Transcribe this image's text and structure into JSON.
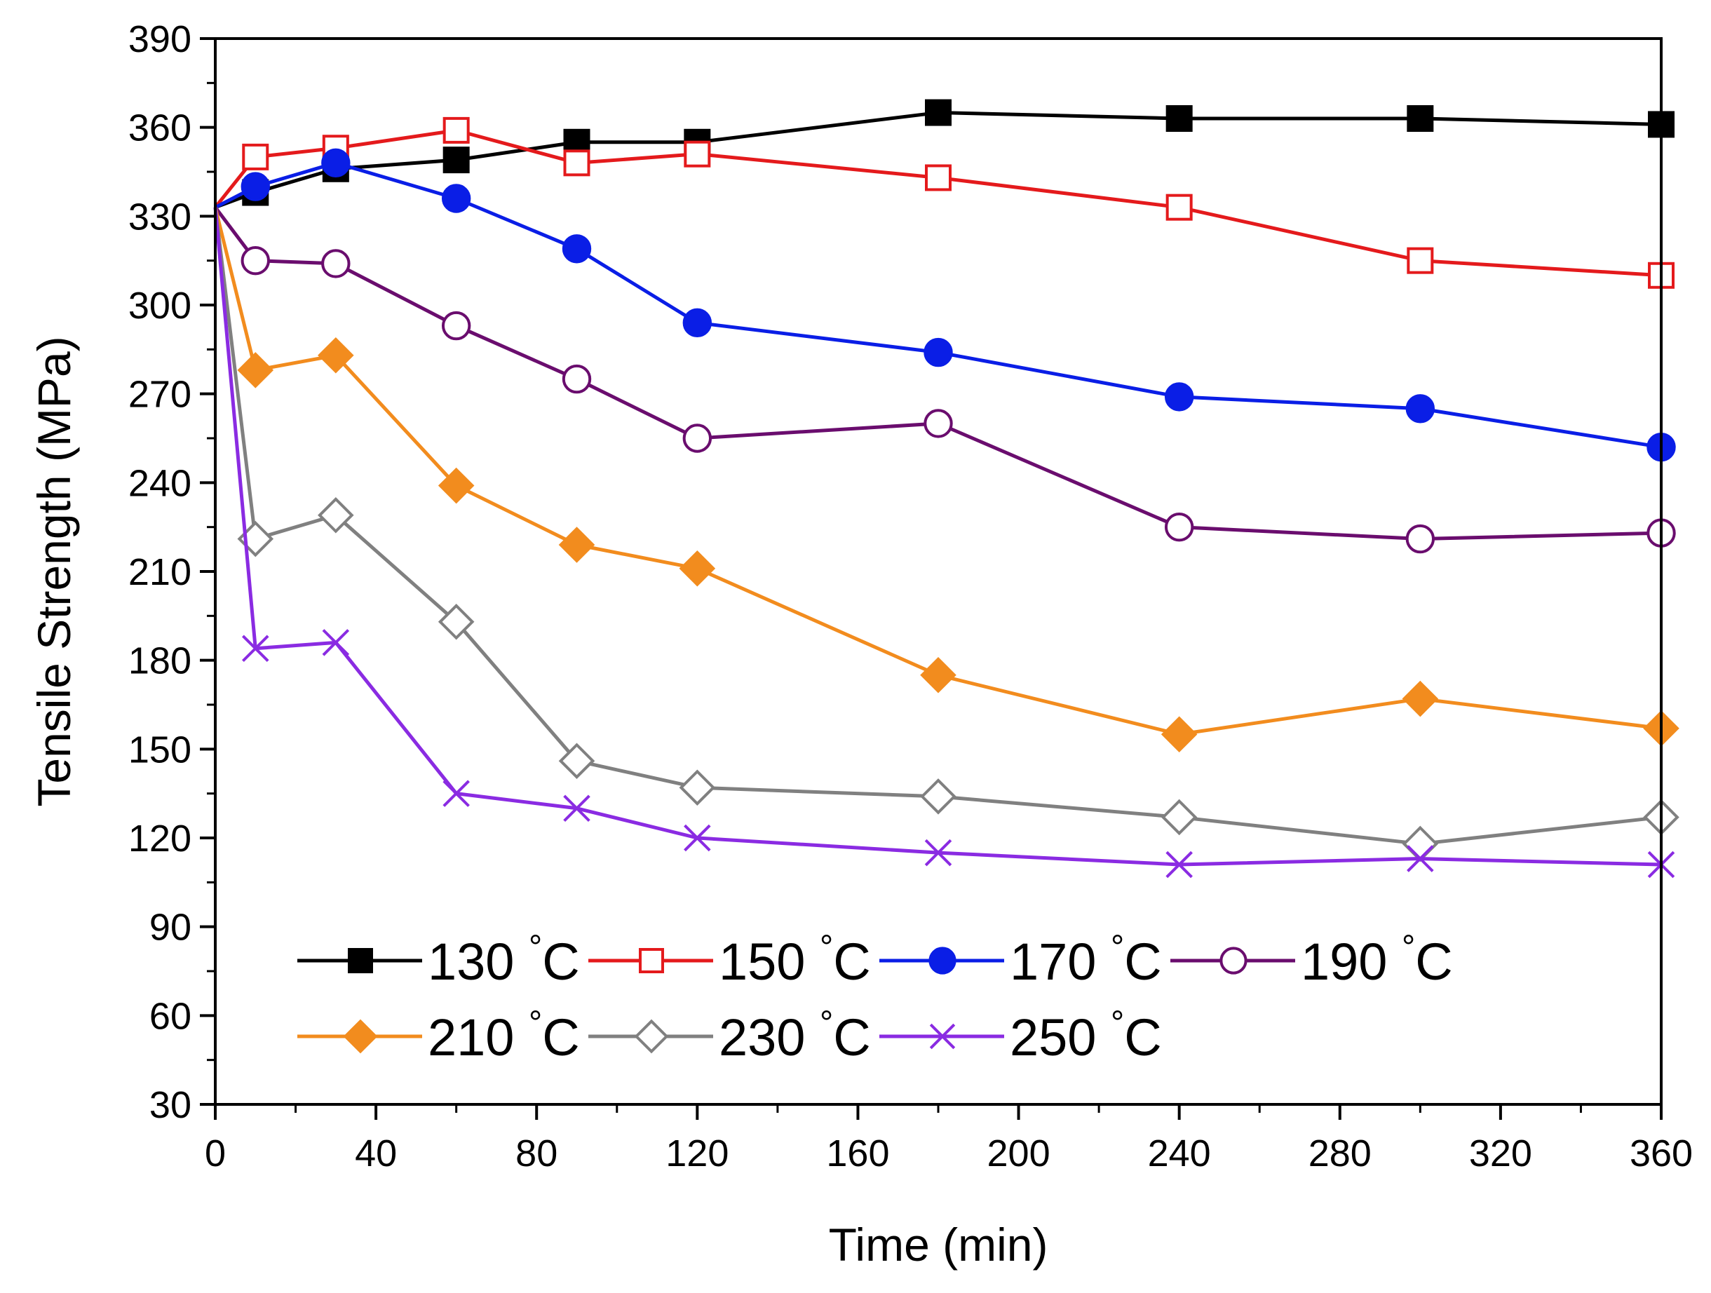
{
  "chart_data": {
    "type": "line",
    "title": "",
    "xlabel": "Time (min)",
    "ylabel": "Tensile Strength (MPa)",
    "xlim": [
      0,
      360
    ],
    "ylim": [
      30,
      390
    ],
    "xticks": [
      0,
      40,
      80,
      120,
      160,
      200,
      240,
      280,
      320,
      360
    ],
    "yticks": [
      30,
      60,
      90,
      120,
      150,
      180,
      210,
      240,
      270,
      300,
      330,
      360,
      390
    ],
    "x": [
      0,
      10,
      30,
      60,
      90,
      120,
      180,
      240,
      300,
      360
    ],
    "grid": false,
    "legend_position": "bottom-left inside",
    "series": [
      {
        "name": "130 °C",
        "label_num": "130",
        "unit": "°C",
        "color": "#000000",
        "marker": "square-filled",
        "values": [
          333,
          338,
          346,
          349,
          355,
          355,
          365,
          363,
          363,
          361
        ]
      },
      {
        "name": "150 °C",
        "label_num": "150",
        "unit": "°C",
        "color": "#e41a1c",
        "marker": "square-open",
        "values": [
          333,
          350,
          353,
          359,
          348,
          351,
          343,
          333,
          315,
          310
        ]
      },
      {
        "name": "170 °C",
        "label_num": "170",
        "unit": "°C",
        "color": "#0a1ee6",
        "marker": "circle-filled",
        "values": [
          333,
          340,
          348,
          336,
          319,
          294,
          284,
          269,
          265,
          252
        ]
      },
      {
        "name": "190 °C",
        "label_num": "190",
        "unit": "°C",
        "color": "#6a0d6e",
        "marker": "circle-open",
        "values": [
          333,
          315,
          314,
          293,
          275,
          255,
          260,
          225,
          221,
          223
        ]
      },
      {
        "name": "210 °C",
        "label_num": "210",
        "unit": "°C",
        "color": "#f28c1e",
        "marker": "diamond-filled",
        "values": [
          333,
          278,
          283,
          239,
          219,
          211,
          175,
          155,
          167,
          157
        ]
      },
      {
        "name": "230 °C",
        "label_num": "230",
        "unit": "°C",
        "color": "#808080",
        "marker": "diamond-open",
        "values": [
          333,
          221,
          229,
          193,
          146,
          137,
          134,
          127,
          118,
          127
        ]
      },
      {
        "name": "250 °C",
        "label_num": "250",
        "unit": "°C",
        "color": "#8a2be2",
        "marker": "x",
        "values": [
          333,
          184,
          186,
          135,
          130,
          120,
          115,
          111,
          113,
          111
        ]
      }
    ]
  }
}
